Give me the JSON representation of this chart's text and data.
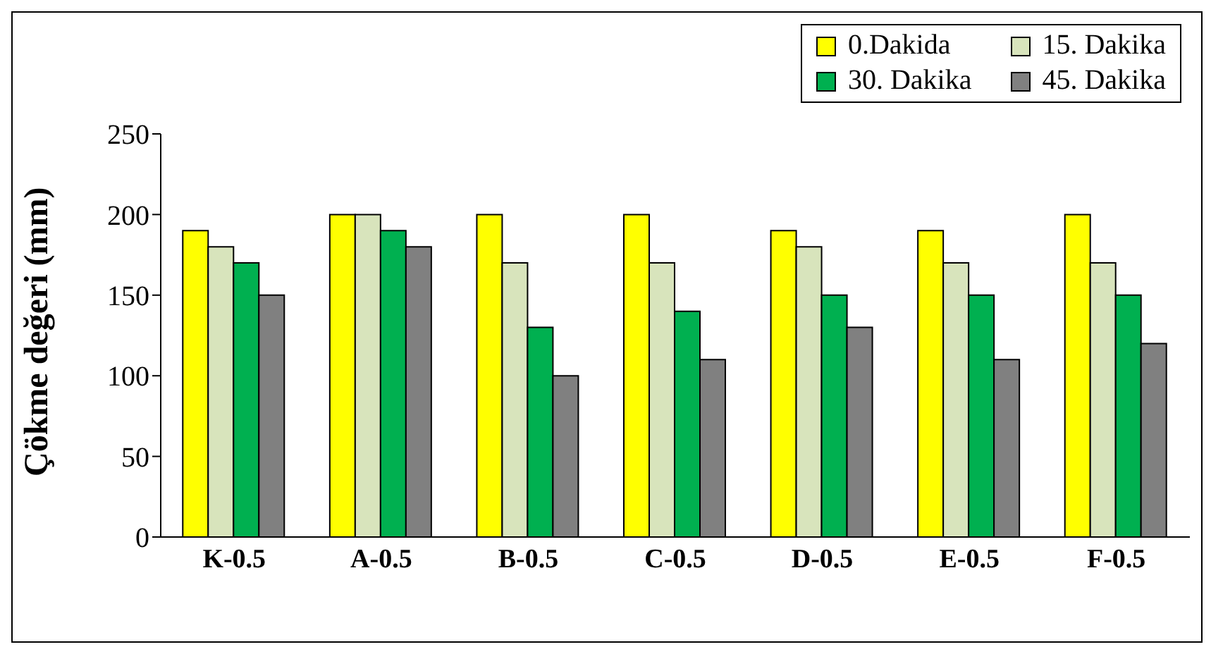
{
  "chart_data": {
    "type": "bar",
    "ylabel": "Çökme değeri (mm)",
    "categories": [
      "K-0.5",
      "A-0.5",
      "B-0.5",
      "C-0.5",
      "D-0.5",
      "E-0.5",
      "F-0.5"
    ],
    "series": [
      {
        "name": "0.Dakida",
        "color": "#ffff00",
        "values": [
          190,
          200,
          200,
          200,
          190,
          190,
          200
        ]
      },
      {
        "name": "15. Dakika",
        "color": "#d8e4bc",
        "values": [
          180,
          200,
          170,
          170,
          180,
          170,
          170
        ]
      },
      {
        "name": "30. Dakika",
        "color": "#00b050",
        "values": [
          170,
          190,
          130,
          140,
          150,
          150,
          150
        ]
      },
      {
        "name": "45. Dakika",
        "color": "#808080",
        "values": [
          150,
          180,
          100,
          110,
          130,
          110,
          120
        ]
      }
    ],
    "ylim": [
      0,
      250
    ],
    "yticks": [
      0,
      50,
      100,
      150,
      200,
      250
    ],
    "grid": false,
    "legend": "top right"
  }
}
